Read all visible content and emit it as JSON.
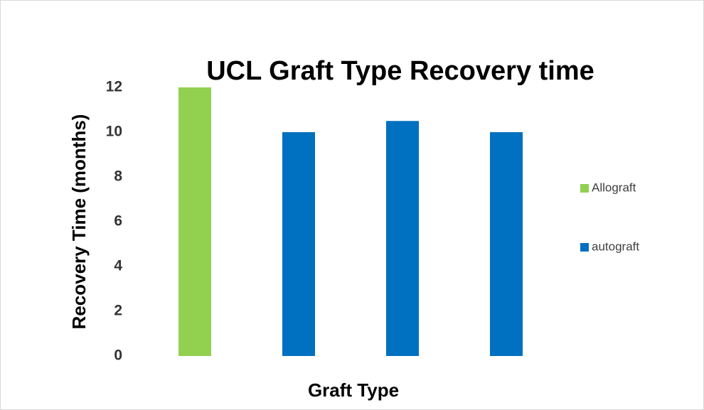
{
  "chart_data": {
    "type": "bar",
    "title": "UCL Graft Type Recovery time",
    "x_label": "Graft Type",
    "y_label": "Recovery Time (months)",
    "categories": [
      null,
      null,
      null,
      null
    ],
    "series": [
      {
        "name": "Allograft",
        "color": "#92d050",
        "values": [
          12,
          null,
          null,
          null
        ]
      },
      {
        "name": "autograft",
        "color": "#0070c0",
        "values": [
          null,
          10,
          10.5,
          10
        ]
      }
    ],
    "ylim": [
      0,
      12
    ],
    "yticks": [
      0,
      2,
      4,
      6,
      8,
      10,
      12
    ],
    "grid": false,
    "legend": "right"
  }
}
